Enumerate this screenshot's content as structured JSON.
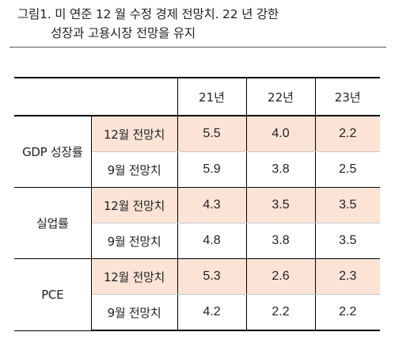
{
  "caption": {
    "line1": "그림1. 미 연준 12 월 수정 경제 전망치. 22 년 강한",
    "line2": "성장과 고용시장 전망을 유지"
  },
  "table": {
    "header": [
      "",
      "",
      "21년",
      "22년",
      "23년"
    ],
    "groups": [
      {
        "label": "GDP 성장률",
        "rows": [
          {
            "label": "12월 전망치",
            "values": [
              "5.5",
              "4.0",
              "2.2"
            ]
          },
          {
            "label": "9월 전망치",
            "values": [
              "5.9",
              "3.8",
              "2.5"
            ]
          }
        ]
      },
      {
        "label": "실업률",
        "rows": [
          {
            "label": "12월 전망치",
            "values": [
              "4.3",
              "3.5",
              "3.5"
            ]
          },
          {
            "label": "9월 전망치",
            "values": [
              "4.8",
              "3.8",
              "3.5"
            ]
          }
        ]
      },
      {
        "label": "PCE",
        "rows": [
          {
            "label": "12월 전망치",
            "values": [
              "5.3",
              "2.6",
              "2.3"
            ]
          },
          {
            "label": "9월 전망치",
            "values": [
              "4.2",
              "2.2",
              "2.2"
            ]
          }
        ]
      }
    ]
  },
  "colors": {
    "highlight_row": "#fbe4d6"
  }
}
